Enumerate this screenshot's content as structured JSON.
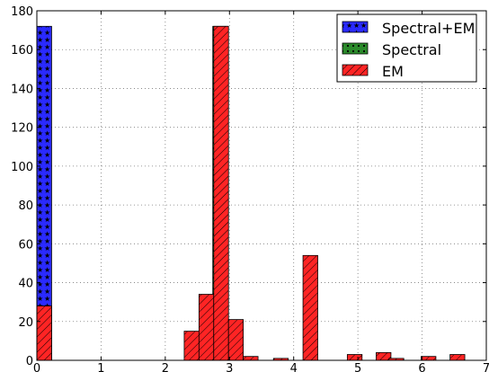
{
  "chart_data": {
    "type": "bar",
    "title": "",
    "xlabel": "",
    "ylabel": "",
    "xlim": [
      0,
      7
    ],
    "ylim": [
      0,
      180
    ],
    "grid": true,
    "legend_position": "top-right",
    "xticks": [
      0,
      1,
      2,
      3,
      4,
      5,
      6,
      7
    ],
    "yticks": [
      0,
      20,
      40,
      60,
      80,
      100,
      120,
      140,
      160,
      180
    ],
    "bar_width": 0.23,
    "series": [
      {
        "name": "Spectral+EM",
        "color": "#2a2aff",
        "hatch": "stars",
        "x": [
          0.115
        ],
        "values": [
          172
        ]
      },
      {
        "name": "Spectral",
        "color": "#2b8a2b",
        "hatch": "dots",
        "x": [
          2.855
        ],
        "values": [
          172
        ]
      },
      {
        "name": "EM",
        "color": "#ff2424",
        "hatch": "diagonal",
        "x": [
          0.115,
          2.41,
          2.64,
          2.87,
          3.1,
          3.33,
          3.8,
          4.26,
          4.95,
          5.4,
          5.6,
          6.1,
          6.55
        ],
        "values": [
          28,
          15,
          34,
          172,
          21,
          2,
          1,
          54,
          3,
          4,
          1,
          2,
          3
        ]
      }
    ]
  }
}
